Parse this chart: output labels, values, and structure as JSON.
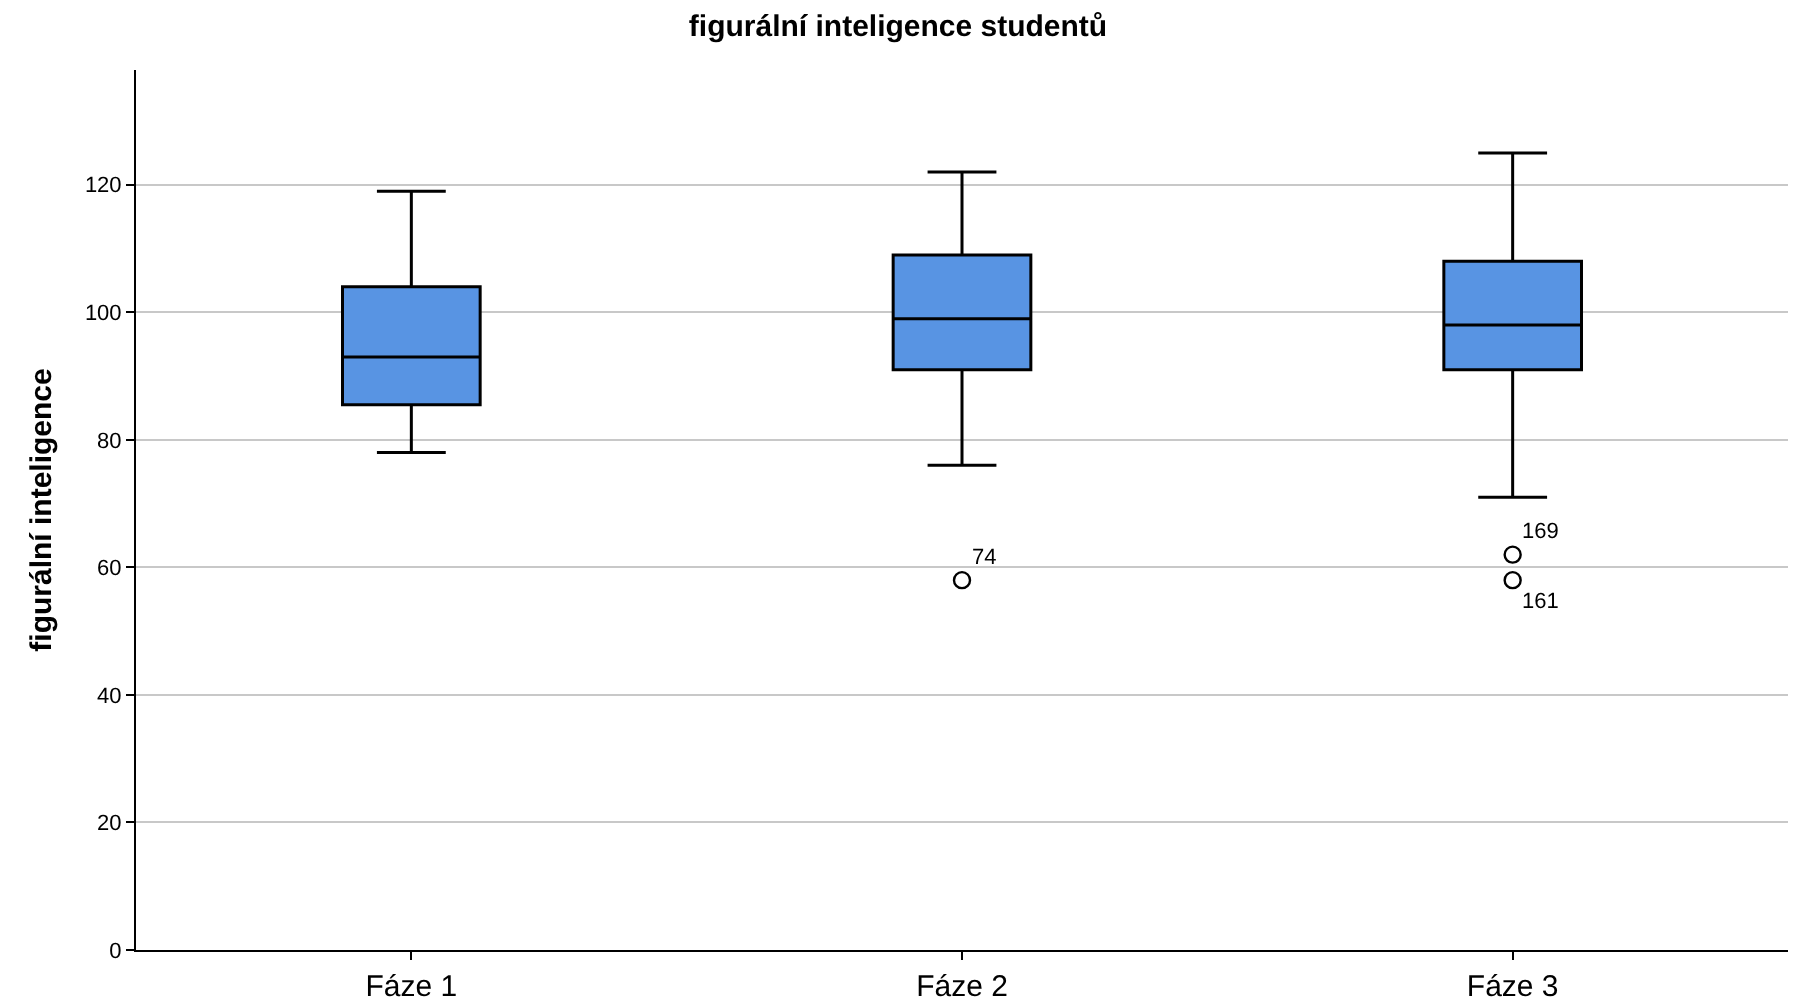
{
  "chart_data": {
    "type": "box",
    "title": "figurální inteligence studentů",
    "ylabel": "figurální inteligence",
    "categories": [
      "Fáze 1",
      "Fáze 2",
      "Fáze 3"
    ],
    "series": [
      {
        "color": "#5894e3",
        "boxes": [
          {
            "low": 78,
            "q1": 85.5,
            "median": 93,
            "q3": 104,
            "high": 119
          },
          {
            "low": 76,
            "q1": 91,
            "median": 99,
            "q3": 109,
            "high": 122,
            "outliers": [
              58
            ]
          },
          {
            "low": 71,
            "q1": 91,
            "median": 98,
            "q3": 108,
            "high": 125,
            "outliers": [
              62,
              58
            ]
          }
        ]
      }
    ],
    "ylim": [
      0,
      138
    ],
    "yticks": [
      0,
      20,
      40,
      60,
      80,
      100,
      120
    ],
    "grid": "y",
    "marker": "circle",
    "annotations": [
      "74",
      "169",
      "161"
    ]
  }
}
